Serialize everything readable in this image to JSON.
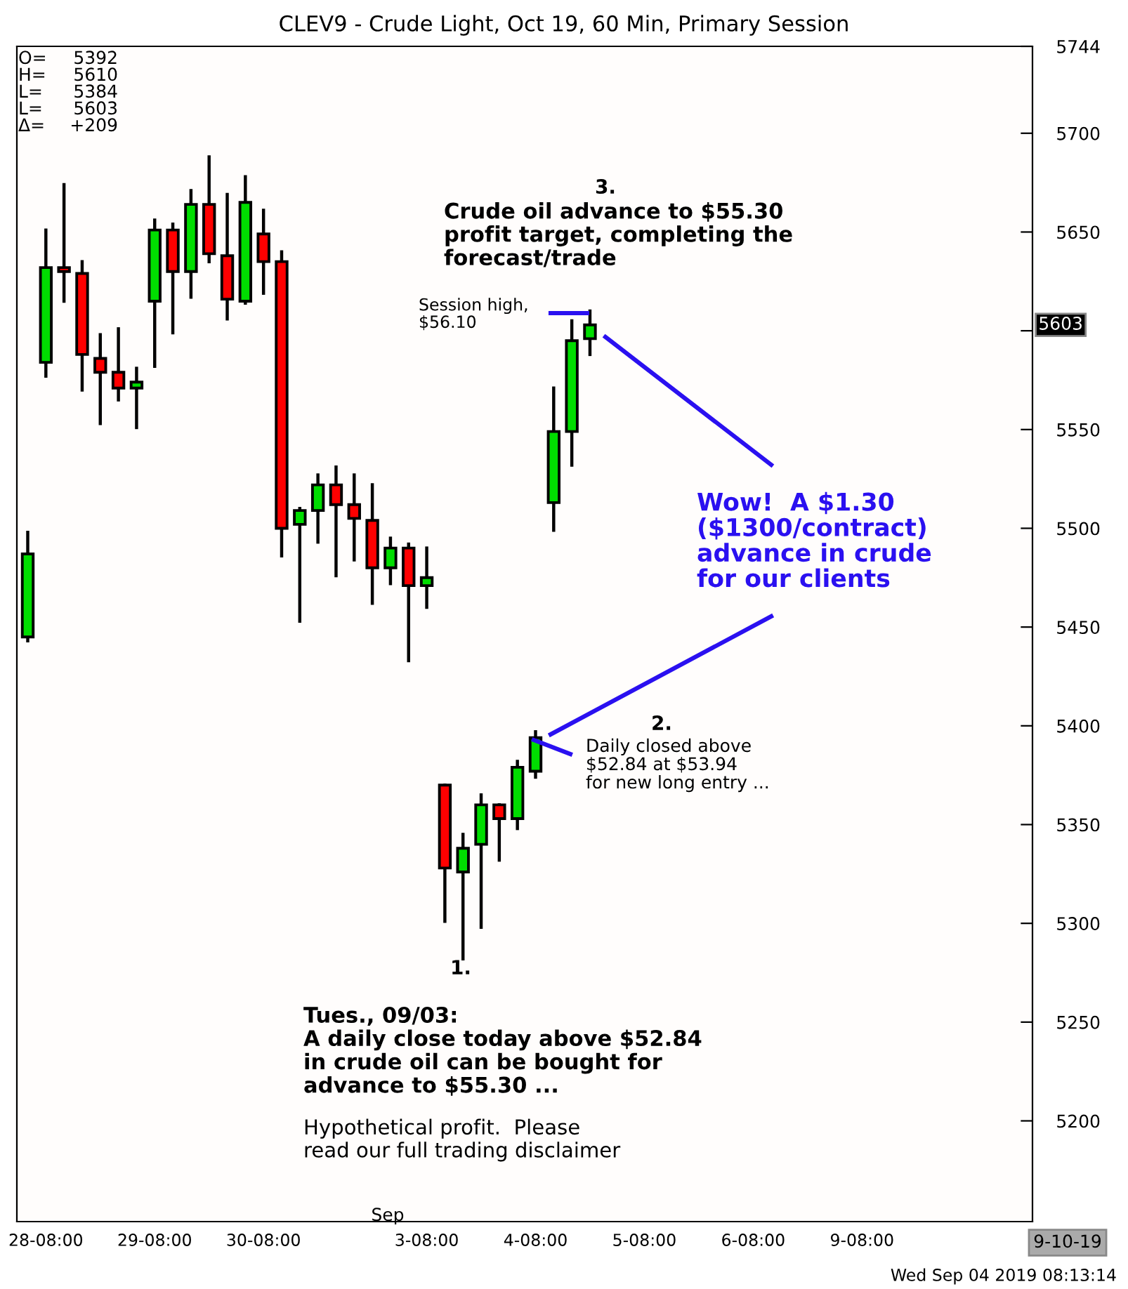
{
  "chart_data": {
    "type": "candlestick",
    "title": "CLEV9 - Crude Light, Oct 19, 60 Min, Primary Session",
    "categories": [
      null,
      "28-08:00",
      null,
      null,
      null,
      null,
      null,
      "29-08:00",
      null,
      null,
      null,
      null,
      null,
      "30-08:00",
      null,
      null,
      null,
      null,
      null,
      null,
      null,
      null,
      "3-08:00",
      null,
      null,
      null,
      null,
      null,
      "4-08:00",
      null,
      null,
      null,
      null,
      null,
      "5-08:00",
      null,
      null,
      null,
      null,
      null,
      "6-08:00",
      null,
      null,
      null,
      null,
      null,
      "9-08:00",
      null,
      null,
      null,
      null,
      null,
      null,
      null,
      null,
      null
    ],
    "ohlc": [
      [
        5445,
        5498,
        5443,
        5487
      ],
      [
        5584,
        5651,
        5577,
        5632
      ],
      [
        5632,
        5674,
        5615,
        5630
      ],
      [
        5629,
        5635,
        5570,
        5588
      ],
      [
        5586,
        5598,
        5553,
        5579
      ],
      [
        5579,
        5601,
        5565,
        5571
      ],
      [
        5571,
        5581,
        5551,
        5574
      ],
      [
        5615,
        5656,
        5582,
        5651
      ],
      [
        5651,
        5654,
        5599,
        5630
      ],
      [
        5630,
        5671,
        5617,
        5664
      ],
      [
        5664,
        5688,
        5635,
        5639
      ],
      [
        5638,
        5669,
        5606,
        5616
      ],
      [
        5615,
        5678,
        5614,
        5665
      ],
      [
        5649,
        5661,
        5619,
        5635
      ],
      [
        5635,
        5640,
        5486,
        5500
      ],
      [
        5502,
        5510,
        5453,
        5509
      ],
      [
        5509,
        5527,
        5493,
        5522
      ],
      [
        5522,
        5531,
        5476,
        5512
      ],
      [
        5512,
        5527,
        5484,
        5505
      ],
      [
        5504,
        5522,
        5462,
        5480
      ],
      [
        5480,
        5495,
        5472,
        5490
      ],
      [
        5490,
        5492,
        5433,
        5471
      ],
      [
        5471,
        5490,
        5460,
        5475
      ],
      [
        5370,
        5370,
        5301,
        5328
      ],
      [
        5326,
        5345,
        5282,
        5338
      ],
      [
        5340,
        5365,
        5298,
        5360
      ],
      [
        5360,
        5360,
        5332,
        5353
      ],
      [
        5353,
        5382,
        5348,
        5379
      ],
      [
        5377,
        5397,
        5374,
        5394
      ],
      [
        5513,
        5571,
        5499,
        5549
      ],
      [
        5549,
        5605,
        5532,
        5595
      ],
      [
        5596,
        5610,
        5588,
        5603
      ],
      null,
      null,
      null,
      null,
      null,
      null,
      null,
      null,
      null,
      null,
      null,
      null,
      null,
      null,
      null,
      null,
      null,
      null,
      null,
      null,
      null,
      null,
      null,
      null
    ],
    "colors": [
      "#00dd00",
      "#00dd00",
      "#ff0000",
      "#ff0000",
      "#ff0000",
      "#ff0000",
      "#00dd00",
      "#00dd00",
      "#ff0000",
      "#00dd00",
      "#ff0000",
      "#ff0000",
      "#00dd00",
      "#ff0000",
      "#ff0000",
      "#00dd00",
      "#00dd00",
      "#ff0000",
      "#ff0000",
      "#ff0000",
      "#00dd00",
      "#ff0000",
      "#00dd00",
      "#ff0000",
      "#00dd00",
      "#00dd00",
      "#ff0000",
      "#00dd00",
      "#00dd00",
      "#00dd00",
      "#00dd00",
      "#00dd00",
      null,
      null,
      null,
      null,
      null,
      null,
      null,
      null,
      null,
      null,
      null,
      null,
      null,
      null,
      null,
      null,
      null,
      null,
      null,
      null,
      null,
      null,
      null,
      null
    ],
    "ylim": [
      5149,
      5744
    ],
    "yticks": [
      5200,
      5250,
      5300,
      5350,
      5400,
      5450,
      5500,
      5550,
      {
        "value": 5600,
        "label": null
      },
      5650,
      5700,
      5744
    ],
    "grid": false,
    "annotations": [
      {
        "text": "5603",
        "y": 5603
      },
      "O= 5392",
      "H= 5610",
      "L= 5384",
      "L= 5603",
      "Δ= +209",
      "Session high,\n$56.10",
      "3.",
      "Crude oil advance to $55.30\nprofit target, completing the\nforecast/trade",
      "Wow!  A $1.30\n($1300/contract)\nadvance in crude\nfor our clients",
      "2.",
      "Daily closed above\n$52.84 at $53.94\nfor new long entry ...",
      "1.",
      "Tues., 09/03:\nA daily close today above $52.84\nin crude oil can be bought for\nadvance to $55.30 ...",
      "Hypothetical profit.  Please\nread our full trading disclaimer",
      "Sep",
      "9-10-19",
      "Wed Sep 04 2019 08:13:14"
    ]
  }
}
